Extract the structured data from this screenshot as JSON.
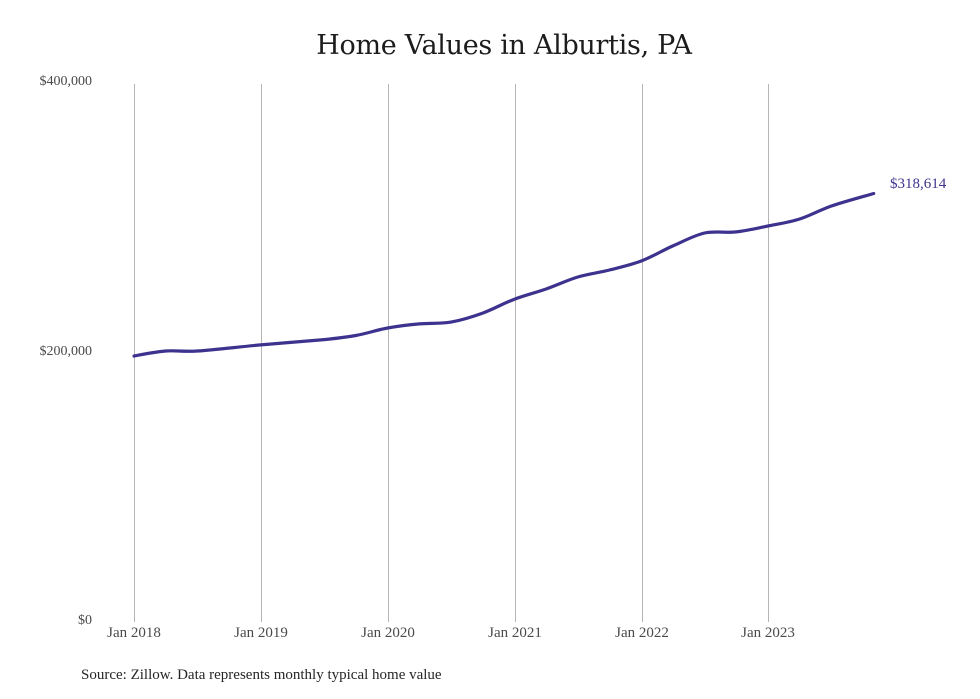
{
  "chart_data": {
    "type": "line",
    "title": "Home Values in Alburtis, PA",
    "xlabel": "",
    "ylabel": "",
    "ylim": [
      0,
      400000
    ],
    "yticks": [
      {
        "value": 0,
        "label": "$0"
      },
      {
        "value": 200000,
        "label": "$200,000"
      },
      {
        "value": 400000,
        "label": "$400,000"
      }
    ],
    "xticks": [
      "Jan 2018",
      "Jan 2019",
      "Jan 2020",
      "Jan 2021",
      "Jan 2022",
      "Jan 2023"
    ],
    "grid": {
      "vertical": true,
      "horizontal": false
    },
    "legend": null,
    "end_label": "$318,614",
    "line_color": "#3d338e",
    "source": "Source: Zillow. Data represents monthly typical home value",
    "series": [
      {
        "name": "Typical home value",
        "x": [
          "2018-01",
          "2018-04",
          "2018-07",
          "2019-01",
          "2019-07",
          "2019-10",
          "2020-01",
          "2020-04",
          "2020-07",
          "2020-10",
          "2021-01",
          "2021-04",
          "2021-07",
          "2021-10",
          "2022-01",
          "2022-04",
          "2022-07",
          "2022-10",
          "2023-01",
          "2023-04",
          "2023-07",
          "2023-11"
        ],
        "values": [
          197800,
          201500,
          201500,
          206000,
          210000,
          213000,
          218600,
          221600,
          223000,
          229700,
          240000,
          247600,
          256500,
          261700,
          268400,
          279600,
          289200,
          290000,
          294400,
          299600,
          309300,
          318614
        ]
      }
    ]
  }
}
